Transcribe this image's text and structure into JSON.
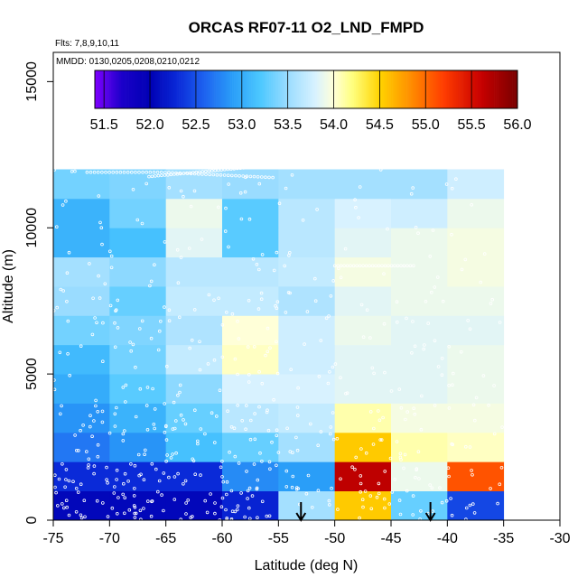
{
  "chart_data": {
    "type": "heatmap",
    "title": "ORCAS RF07-11 O2_LND_FMPD",
    "flights_note": "Flts: 7,8,9,10,11",
    "dates_note": "MMDD: 0130,0205,0208,0210,0212",
    "xlabel": "Latitude (deg N)",
    "ylabel": "Altitude (m)",
    "xlim": [
      -75,
      -30
    ],
    "ylim": [
      0,
      16000
    ],
    "x_ticks": [
      -75,
      -70,
      -65,
      -60,
      -55,
      -50,
      -45,
      -40,
      -35,
      -30
    ],
    "x_tick_labels": [
      "-75",
      "-70",
      "-65",
      "-60",
      "-55",
      "-50",
      "-45",
      "-40",
      "-35",
      "-30"
    ],
    "y_ticks": [
      0,
      5000,
      10000,
      15000
    ],
    "y_tick_labels": [
      "0",
      "5000",
      "10000",
      "15000"
    ],
    "colorbar": {
      "range": [
        51.4,
        56.0
      ],
      "ticks": [
        51.5,
        52.0,
        52.5,
        53.0,
        53.5,
        54.0,
        54.5,
        55.0,
        55.5,
        56.0
      ],
      "tick_labels": [
        "51.5",
        "52.0",
        "52.5",
        "53.0",
        "53.5",
        "54.0",
        "54.5",
        "55.0",
        "55.5",
        "56.0"
      ],
      "stops": [
        {
          "v": 51.4,
          "c": "#7f00ff"
        },
        {
          "v": 51.7,
          "c": "#1a00c8"
        },
        {
          "v": 52.0,
          "c": "#0000b4"
        },
        {
          "v": 52.3,
          "c": "#0a2ad8"
        },
        {
          "v": 52.6,
          "c": "#1e64f0"
        },
        {
          "v": 52.9,
          "c": "#2a9ef8"
        },
        {
          "v": 53.2,
          "c": "#4cc8ff"
        },
        {
          "v": 53.5,
          "c": "#9adcff"
        },
        {
          "v": 53.8,
          "c": "#d8f2ff"
        },
        {
          "v": 54.0,
          "c": "#ffffd8"
        },
        {
          "v": 54.2,
          "c": "#ffff80"
        },
        {
          "v": 54.5,
          "c": "#ffd400"
        },
        {
          "v": 54.8,
          "c": "#ff9600"
        },
        {
          "v": 55.2,
          "c": "#ff3c00"
        },
        {
          "v": 55.6,
          "c": "#c80000"
        },
        {
          "v": 56.0,
          "c": "#780000"
        }
      ]
    },
    "lat_edges": [
      -75,
      -70,
      -65,
      -60,
      -55,
      -50,
      -45,
      -40,
      -35
    ],
    "alt_edges": [
      0,
      1000,
      2000,
      3000,
      4000,
      5000,
      6000,
      7000,
      8000,
      9000,
      10000,
      11000,
      12000
    ],
    "cells": [
      [
        52.05,
        52.05,
        52.05,
        52.25,
        53.55,
        54.55,
        53.3,
        52.45
      ],
      [
        52.3,
        52.3,
        52.3,
        52.8,
        52.9,
        55.65,
        53.9,
        55.1
      ],
      [
        52.7,
        52.85,
        53.15,
        53.3,
        53.55,
        54.55,
        54.1,
        54.05
      ],
      [
        52.85,
        53.05,
        53.3,
        53.65,
        53.7,
        54.1,
        53.95,
        53.95
      ],
      [
        53.0,
        53.25,
        53.45,
        53.8,
        53.8,
        53.85,
        53.85,
        53.9
      ],
      [
        53.1,
        53.35,
        53.7,
        54.05,
        53.75,
        53.85,
        53.85,
        53.9
      ],
      [
        53.35,
        53.4,
        53.6,
        54.0,
        53.75,
        53.9,
        53.85,
        53.85
      ],
      [
        53.5,
        53.3,
        53.7,
        53.7,
        53.6,
        53.85,
        53.9,
        53.9
      ],
      [
        53.55,
        53.45,
        53.65,
        53.65,
        53.7,
        53.95,
        53.9,
        53.95
      ],
      [
        53.05,
        53.15,
        53.85,
        53.25,
        53.65,
        53.85,
        53.9,
        53.95
      ],
      [
        53.05,
        53.35,
        53.9,
        53.25,
        53.65,
        53.8,
        53.75,
        53.9
      ],
      [
        53.35,
        53.4,
        53.55,
        53.5,
        53.55,
        53.55,
        53.55,
        53.75
      ]
    ],
    "arrows_latitude": [
      -53.0,
      -41.5
    ],
    "point_color": "#ffffff"
  }
}
